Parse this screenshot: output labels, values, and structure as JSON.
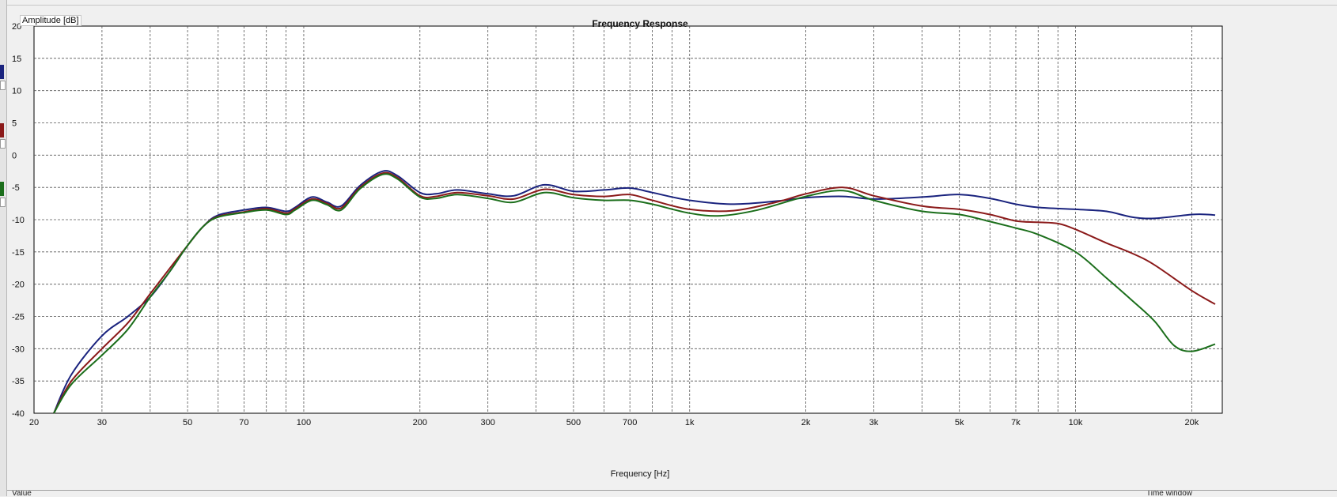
{
  "status_bar": {
    "left_label": "Value",
    "right_label": "Time window"
  },
  "sidebar": {
    "trace_swatches": [
      {
        "color": "#1a237e"
      },
      {
        "color": "#8b1a1a"
      },
      {
        "color": "#1b6e1b"
      }
    ]
  },
  "chart_data": {
    "type": "line",
    "title": "Frequency Response",
    "xlabel": "Frequency [Hz]",
    "ylabel": "Amplitude [dB]",
    "x_scale": "log",
    "xlim": [
      20,
      24000
    ],
    "ylim": [
      -40,
      20
    ],
    "grid": true,
    "x_ticks": [
      {
        "value": 20,
        "label": "20"
      },
      {
        "value": 30,
        "label": "30"
      },
      {
        "value": 50,
        "label": "50"
      },
      {
        "value": 70,
        "label": "70"
      },
      {
        "value": 100,
        "label": "100"
      },
      {
        "value": 200,
        "label": "200"
      },
      {
        "value": 300,
        "label": "300"
      },
      {
        "value": 500,
        "label": "500"
      },
      {
        "value": 700,
        "label": "700"
      },
      {
        "value": 1000,
        "label": "1k"
      },
      {
        "value": 2000,
        "label": "2k"
      },
      {
        "value": 3000,
        "label": "3k"
      },
      {
        "value": 5000,
        "label": "5k"
      },
      {
        "value": 7000,
        "label": "7k"
      },
      {
        "value": 10000,
        "label": "10k"
      },
      {
        "value": 20000,
        "label": "20k"
      }
    ],
    "y_ticks": [
      20,
      15,
      10,
      5,
      0,
      -5,
      -10,
      -15,
      -20,
      -25,
      -30,
      -35,
      -40
    ],
    "series": [
      {
        "color": "#1a237e",
        "points": [
          [
            22.5,
            -40
          ],
          [
            25,
            -34
          ],
          [
            30,
            -28
          ],
          [
            35,
            -25
          ],
          [
            40,
            -22
          ],
          [
            45,
            -18
          ],
          [
            50,
            -14
          ],
          [
            55,
            -11
          ],
          [
            60,
            -9.3
          ],
          [
            70,
            -8.5
          ],
          [
            80,
            -8.1
          ],
          [
            90,
            -8.7
          ],
          [
            95,
            -8.1
          ],
          [
            105,
            -6.5
          ],
          [
            115,
            -7.3
          ],
          [
            125,
            -7.9
          ],
          [
            140,
            -4.7
          ],
          [
            160,
            -2.5
          ],
          [
            175,
            -3.2
          ],
          [
            200,
            -5.8
          ],
          [
            220,
            -6.0
          ],
          [
            250,
            -5.4
          ],
          [
            300,
            -6.0
          ],
          [
            350,
            -6.3
          ],
          [
            420,
            -4.6
          ],
          [
            500,
            -5.6
          ],
          [
            600,
            -5.4
          ],
          [
            700,
            -5.1
          ],
          [
            800,
            -5.8
          ],
          [
            1000,
            -7.0
          ],
          [
            1300,
            -7.6
          ],
          [
            1700,
            -7.1
          ],
          [
            2000,
            -6.6
          ],
          [
            2500,
            -6.4
          ],
          [
            3000,
            -6.8
          ],
          [
            4000,
            -6.5
          ],
          [
            5000,
            -6.1
          ],
          [
            6000,
            -6.7
          ],
          [
            7000,
            -7.6
          ],
          [
            8000,
            -8.1
          ],
          [
            10000,
            -8.4
          ],
          [
            12000,
            -8.7
          ],
          [
            14000,
            -9.6
          ],
          [
            16000,
            -9.8
          ],
          [
            20000,
            -9.2
          ],
          [
            22000,
            -9.2
          ],
          [
            23000,
            -9.3
          ]
        ]
      },
      {
        "color": "#8b1a1a",
        "points": [
          [
            22.5,
            -40
          ],
          [
            25,
            -35
          ],
          [
            30,
            -30
          ],
          [
            35,
            -26
          ],
          [
            40,
            -21.5
          ],
          [
            45,
            -17.5
          ],
          [
            50,
            -14
          ],
          [
            55,
            -11
          ],
          [
            60,
            -9.5
          ],
          [
            70,
            -8.8
          ],
          [
            80,
            -8.3
          ],
          [
            90,
            -9.0
          ],
          [
            95,
            -8.3
          ],
          [
            105,
            -6.8
          ],
          [
            115,
            -7.5
          ],
          [
            125,
            -8.2
          ],
          [
            140,
            -5.0
          ],
          [
            160,
            -2.8
          ],
          [
            175,
            -3.5
          ],
          [
            200,
            -6.3
          ],
          [
            220,
            -6.4
          ],
          [
            250,
            -5.8
          ],
          [
            300,
            -6.3
          ],
          [
            350,
            -6.8
          ],
          [
            420,
            -5.3
          ],
          [
            500,
            -6.1
          ],
          [
            600,
            -6.4
          ],
          [
            700,
            -6.1
          ],
          [
            800,
            -7.0
          ],
          [
            1000,
            -8.4
          ],
          [
            1300,
            -8.6
          ],
          [
            1700,
            -7.2
          ],
          [
            2000,
            -6.0
          ],
          [
            2500,
            -5.0
          ],
          [
            3000,
            -6.3
          ],
          [
            4000,
            -7.9
          ],
          [
            5000,
            -8.4
          ],
          [
            6000,
            -9.2
          ],
          [
            7000,
            -10.2
          ],
          [
            8000,
            -10.4
          ],
          [
            9000,
            -10.6
          ],
          [
            10000,
            -11.5
          ],
          [
            12000,
            -13.6
          ],
          [
            14000,
            -15.2
          ],
          [
            16000,
            -17.0
          ],
          [
            20000,
            -21.0
          ],
          [
            23000,
            -23.1
          ]
        ]
      },
      {
        "color": "#1b6e1b",
        "points": [
          [
            22.5,
            -40
          ],
          [
            25,
            -35.5
          ],
          [
            30,
            -31
          ],
          [
            35,
            -27
          ],
          [
            40,
            -22
          ],
          [
            45,
            -18
          ],
          [
            50,
            -14
          ],
          [
            55,
            -11
          ],
          [
            60,
            -9.6
          ],
          [
            70,
            -8.9
          ],
          [
            80,
            -8.5
          ],
          [
            90,
            -9.2
          ],
          [
            95,
            -8.5
          ],
          [
            105,
            -7.0
          ],
          [
            115,
            -7.7
          ],
          [
            125,
            -8.5
          ],
          [
            140,
            -5.2
          ],
          [
            160,
            -3.0
          ],
          [
            175,
            -3.7
          ],
          [
            200,
            -6.5
          ],
          [
            220,
            -6.7
          ],
          [
            250,
            -6.1
          ],
          [
            300,
            -6.7
          ],
          [
            350,
            -7.3
          ],
          [
            420,
            -5.8
          ],
          [
            500,
            -6.6
          ],
          [
            600,
            -7.0
          ],
          [
            700,
            -7.0
          ],
          [
            800,
            -7.6
          ],
          [
            1000,
            -9.0
          ],
          [
            1200,
            -9.4
          ],
          [
            1500,
            -8.5
          ],
          [
            2000,
            -6.4
          ],
          [
            2500,
            -5.5
          ],
          [
            3000,
            -7.0
          ],
          [
            4000,
            -8.7
          ],
          [
            5000,
            -9.2
          ],
          [
            6000,
            -10.3
          ],
          [
            7000,
            -11.3
          ],
          [
            8000,
            -12.3
          ],
          [
            10000,
            -15.0
          ],
          [
            12000,
            -19.0
          ],
          [
            14000,
            -22.5
          ],
          [
            16000,
            -25.7
          ],
          [
            18000,
            -29.5
          ],
          [
            20000,
            -30.4
          ],
          [
            23000,
            -29.3
          ]
        ]
      }
    ]
  }
}
